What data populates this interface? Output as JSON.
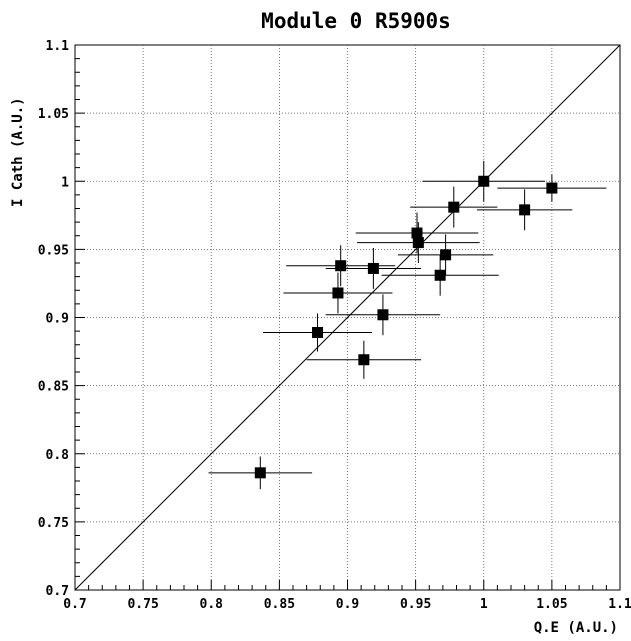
{
  "chart_data": {
    "type": "scatter",
    "title": "Module 0 R5900s",
    "xlabel": "Q.E (A.U.)",
    "ylabel": "I Cath (A.U.)",
    "xlim": [
      0.7,
      1.1
    ],
    "ylim": [
      0.7,
      1.1
    ],
    "x_ticks": [
      0.7,
      0.75,
      0.8,
      0.85,
      0.9,
      0.95,
      1,
      1.05,
      1.1
    ],
    "y_ticks": [
      0.7,
      0.75,
      0.8,
      0.85,
      0.9,
      0.95,
      1,
      1.05,
      1.1
    ],
    "x_tick_labels": [
      "0.7",
      "0.75",
      "0.8",
      "0.85",
      "0.9",
      "0.95",
      "1",
      "1.05",
      "1.1"
    ],
    "y_tick_labels": [
      "0.7",
      "0.75",
      "0.8",
      "0.85",
      "0.9",
      "0.95",
      "1",
      "1.05",
      "1.1"
    ],
    "grid": true,
    "reference_line": {
      "from": [
        0.7,
        0.7
      ],
      "to": [
        1.1,
        1.1
      ]
    },
    "marker": "square",
    "points": [
      {
        "x": 1.0,
        "y": 1.0,
        "xerr": 0.045,
        "yerr": 0.015
      },
      {
        "x": 1.05,
        "y": 0.995,
        "xerr": 0.04,
        "yerr": 0.01
      },
      {
        "x": 0.978,
        "y": 0.981,
        "xerr": 0.032,
        "yerr": 0.015
      },
      {
        "x": 1.03,
        "y": 0.979,
        "xerr": 0.035,
        "yerr": 0.015
      },
      {
        "x": 0.951,
        "y": 0.962,
        "xerr": 0.045,
        "yerr": 0.015
      },
      {
        "x": 0.952,
        "y": 0.955,
        "xerr": 0.045,
        "yerr": 0.015
      },
      {
        "x": 0.972,
        "y": 0.946,
        "xerr": 0.035,
        "yerr": 0.015
      },
      {
        "x": 0.895,
        "y": 0.938,
        "xerr": 0.04,
        "yerr": 0.015
      },
      {
        "x": 0.919,
        "y": 0.936,
        "xerr": 0.035,
        "yerr": 0.015
      },
      {
        "x": 0.968,
        "y": 0.931,
        "xerr": 0.043,
        "yerr": 0.015
      },
      {
        "x": 0.893,
        "y": 0.918,
        "xerr": 0.04,
        "yerr": 0.015
      },
      {
        "x": 0.926,
        "y": 0.902,
        "xerr": 0.042,
        "yerr": 0.015
      },
      {
        "x": 0.878,
        "y": 0.889,
        "xerr": 0.04,
        "yerr": 0.014
      },
      {
        "x": 0.912,
        "y": 0.869,
        "xerr": 0.042,
        "yerr": 0.014
      },
      {
        "x": 0.836,
        "y": 0.786,
        "xerr": 0.038,
        "yerr": 0.012
      }
    ]
  }
}
